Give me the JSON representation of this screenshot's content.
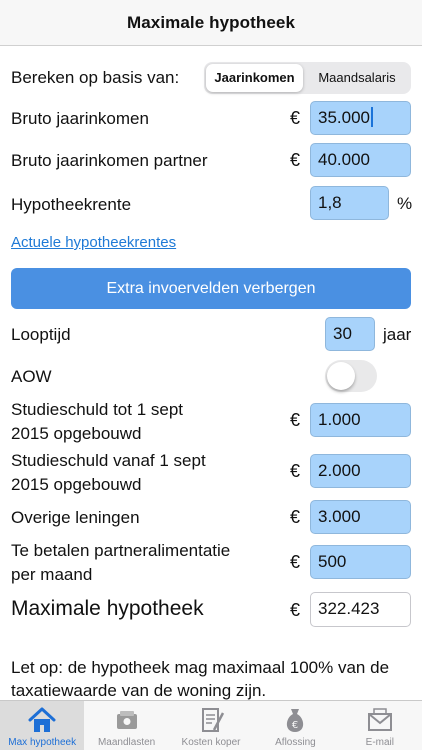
{
  "header": {
    "title": "Maximale hypotheek"
  },
  "basis": {
    "label": "Bereken op basis van:",
    "options": [
      "Jaarinkomen",
      "Maandsalaris"
    ]
  },
  "fields": {
    "income": {
      "label": "Bruto jaarinkomen",
      "currency": "€",
      "value": "35.000"
    },
    "partner_income": {
      "label": "Bruto jaarinkomen partner",
      "currency": "€",
      "value": "40.000"
    },
    "interest": {
      "label": "Hypotheekrente",
      "value": "1,8",
      "unit": "%"
    }
  },
  "links": {
    "current_rates": "Actuele hypotheekrentes"
  },
  "toggle_button": {
    "label": "Extra invoervelden verbergen"
  },
  "extra": {
    "term": {
      "label": "Looptijd",
      "value": "30",
      "unit": "jaar"
    },
    "aow": {
      "label": "AOW",
      "on": false
    },
    "study_before": {
      "label_line1": "Studieschuld tot 1 sept",
      "label_line2": "2015 opgebouwd",
      "currency": "€",
      "value": "1.000"
    },
    "study_after": {
      "label_line1": "Studieschuld vanaf 1 sept",
      "label_line2": "2015 opgebouwd",
      "currency": "€",
      "value": "2.000"
    },
    "other_loans": {
      "label": "Overige leningen",
      "currency": "€",
      "value": "3.000"
    },
    "alimony": {
      "label_line1": "Te betalen partneralimentatie",
      "label_line2": "per maand",
      "currency": "€",
      "value": "500"
    }
  },
  "result": {
    "label": "Maximale hypotheek",
    "currency": "€",
    "value": "322.423"
  },
  "note": "Let op: de hypotheek mag maximaal 100% van de taxatiewaarde van de woning zijn.",
  "tabs": [
    {
      "label": "Max hypotheek",
      "icon": "house-icon"
    },
    {
      "label": "Maandlasten",
      "icon": "wallet-icon"
    },
    {
      "label": "Kosten koper",
      "icon": "document-icon"
    },
    {
      "label": "Aflossing",
      "icon": "money-bag-icon"
    },
    {
      "label": "E-mail",
      "icon": "envelope-icon"
    }
  ],
  "colors": {
    "accent": "#4a90e2",
    "field": "#a8d3fb",
    "link": "#1f7ad6",
    "tab_active": "#1d6fd6"
  }
}
